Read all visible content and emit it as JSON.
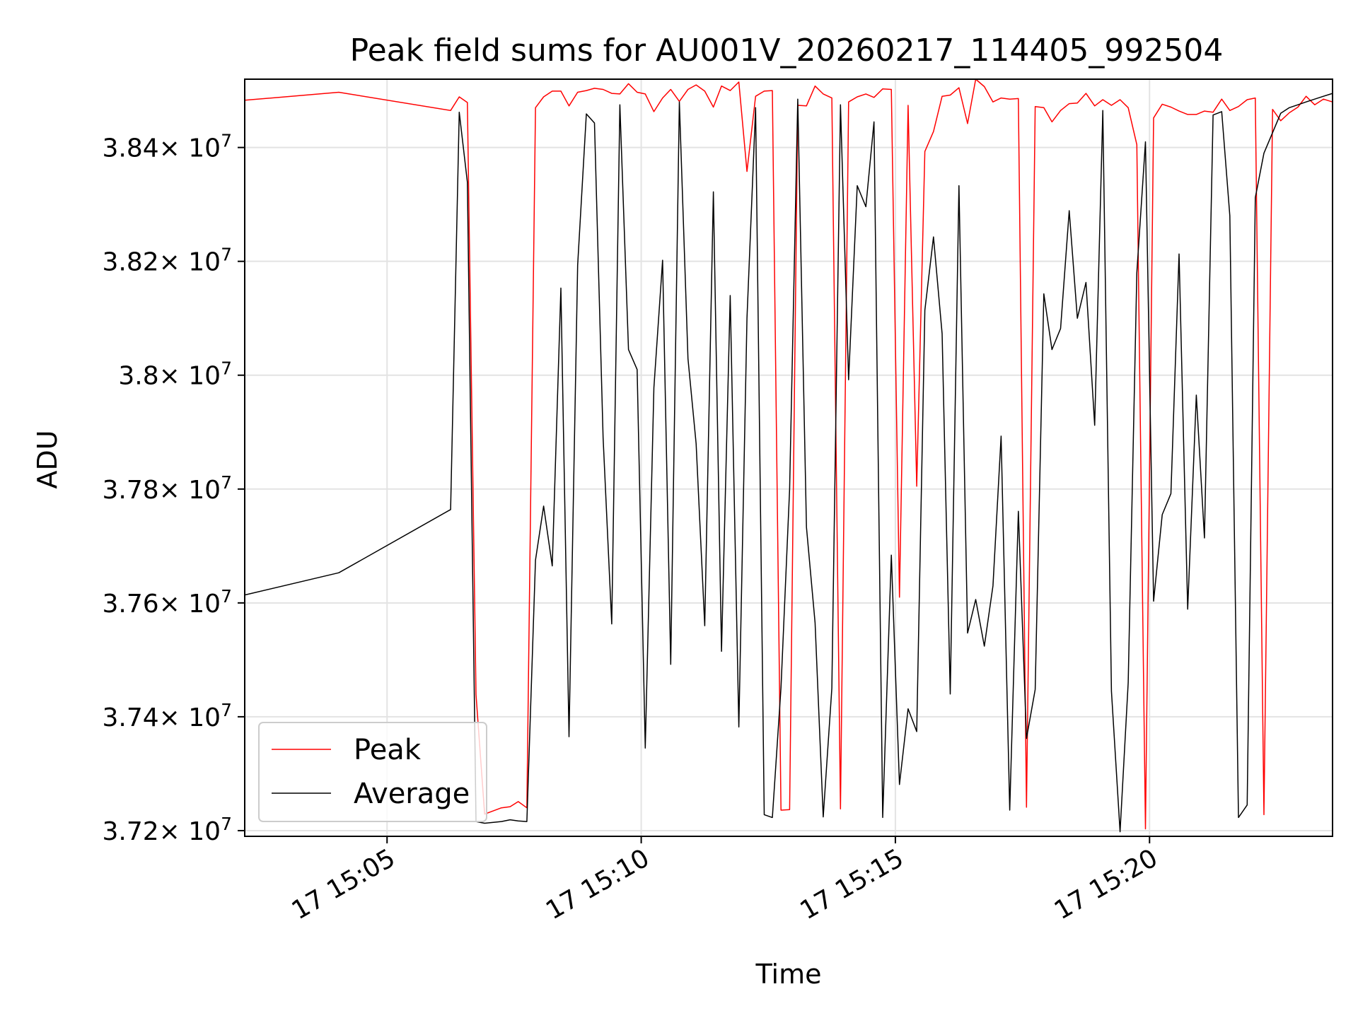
{
  "chart_data": {
    "type": "line",
    "title": "Peak field sums for AU001V_20260217_114405_992504",
    "xlabel": "Time",
    "ylabel": "ADU",
    "x_unit": "minutes after 15:00 on day 17",
    "xlim": [
      2.2,
      23.6
    ],
    "ylim": [
      37190000,
      38520000
    ],
    "grid": true,
    "legend_position": "lower-left",
    "x_ticks": [
      {
        "value": 5,
        "label": "17 15:05"
      },
      {
        "value": 10,
        "label": "17 15:10"
      },
      {
        "value": 15,
        "label": "17 15:15"
      },
      {
        "value": 20,
        "label": "17 15:20"
      }
    ],
    "y_ticks": [
      {
        "value": 37200000,
        "mantissa": "3.72",
        "exponent": "7"
      },
      {
        "value": 37400000,
        "mantissa": "3.74",
        "exponent": "7"
      },
      {
        "value": 37600000,
        "mantissa": "3.76",
        "exponent": "7"
      },
      {
        "value": 37800000,
        "mantissa": "3.78",
        "exponent": "7"
      },
      {
        "value": 38000000,
        "mantissa": "3.8",
        "exponent": "7"
      },
      {
        "value": 38200000,
        "mantissa": "3.82",
        "exponent": "7"
      },
      {
        "value": 38400000,
        "mantissa": "3.84",
        "exponent": "7"
      }
    ],
    "y_tick_multiplier": "× 10",
    "x": [
      2.2,
      4.05,
      6.25,
      6.42,
      6.58,
      6.75,
      6.92,
      7.25,
      7.42,
      7.58,
      7.75,
      7.92,
      8.08,
      8.25,
      8.42,
      8.58,
      8.75,
      8.92,
      9.08,
      9.25,
      9.42,
      9.58,
      9.75,
      9.92,
      10.08,
      10.25,
      10.42,
      10.58,
      10.75,
      10.92,
      11.08,
      11.25,
      11.42,
      11.58,
      11.75,
      11.92,
      12.08,
      12.25,
      12.42,
      12.58,
      12.75,
      12.92,
      13.08,
      13.25,
      13.42,
      13.58,
      13.75,
      13.92,
      14.08,
      14.25,
      14.42,
      14.58,
      14.75,
      14.92,
      15.08,
      15.25,
      15.42,
      15.58,
      15.75,
      15.92,
      16.08,
      16.25,
      16.42,
      16.58,
      16.75,
      16.92,
      17.08,
      17.25,
      17.42,
      17.58,
      17.75,
      17.92,
      18.08,
      18.25,
      18.42,
      18.58,
      18.75,
      18.92,
      19.08,
      19.25,
      19.42,
      19.58,
      19.75,
      19.92,
      20.08,
      20.25,
      20.42,
      20.58,
      20.75,
      20.92,
      21.08,
      21.25,
      21.42,
      21.58,
      21.75,
      21.92,
      22.08,
      22.25,
      22.42,
      22.58,
      22.75,
      22.92,
      23.08,
      23.25,
      23.42,
      23.6
    ],
    "series": [
      {
        "name": "Peak",
        "color": "#ff0000",
        "values": [
          38483000,
          38497000,
          38465000,
          38489000,
          38479000,
          37439000,
          37229000,
          37240000,
          37242000,
          37251000,
          37240000,
          38470000,
          38489000,
          38499000,
          38499000,
          38473000,
          38497000,
          38500000,
          38504000,
          38502000,
          38495000,
          38494000,
          38512000,
          38497000,
          38494000,
          38463000,
          38487000,
          38502000,
          38481000,
          38502000,
          38510000,
          38499000,
          38471000,
          38508000,
          38500000,
          38515000,
          38358000,
          38490000,
          38499000,
          38500000,
          37236000,
          37237000,
          38474000,
          38473000,
          38508000,
          38494000,
          38487000,
          37238000,
          38480000,
          38489000,
          38494000,
          38488000,
          38503000,
          38502000,
          37610000,
          38474000,
          37805000,
          38393000,
          38428000,
          38490000,
          38492000,
          38505000,
          38442000,
          38520000,
          38507000,
          38480000,
          38487000,
          38485000,
          38486000,
          37241000,
          38472000,
          38470000,
          38445000,
          38465000,
          38477000,
          38478000,
          38495000,
          38473000,
          38484000,
          38474000,
          38484000,
          38470000,
          38405000,
          37203000,
          38452000,
          38476000,
          38471000,
          38464000,
          38458000,
          38458000,
          38464000,
          38462000,
          38485000,
          38465000,
          38472000,
          38484000,
          38487000,
          37228000,
          38467000,
          38447000,
          38461000,
          38471000,
          38490000,
          38475000,
          38485000,
          38480000
        ]
      },
      {
        "name": "Average",
        "color": "#000000",
        "values": [
          37614000,
          37653000,
          37764000,
          38462000,
          38339000,
          37216000,
          37213000,
          37216000,
          37219000,
          37217000,
          37216000,
          37675000,
          37770000,
          37665000,
          38153000,
          37365000,
          38193000,
          38459000,
          38443000,
          37890000,
          37563000,
          38475000,
          38045000,
          38010000,
          37345000,
          37978000,
          38202000,
          37492000,
          38480000,
          38029000,
          37880000,
          37560000,
          38322000,
          37515000,
          38140000,
          37382000,
          38100000,
          38470000,
          37228000,
          37223000,
          37451000,
          37800000,
          38485000,
          37733000,
          37565000,
          37224000,
          37450000,
          38475000,
          37992000,
          38333000,
          38296000,
          38445000,
          37223000,
          37684000,
          37281000,
          37414000,
          37374000,
          38114000,
          38243000,
          38073000,
          37440000,
          38333000,
          37547000,
          37606000,
          37524000,
          37630000,
          37893000,
          37236000,
          37761000,
          37362000,
          37448000,
          38143000,
          38045000,
          38082000,
          38289000,
          38100000,
          38163000,
          37912000,
          38465000,
          37445000,
          37198000,
          37460000,
          38180000,
          38410000,
          37603000,
          37755000,
          37792000,
          38213000,
          37589000,
          37965000,
          37714000,
          38457000,
          38463000,
          38280000,
          37223000,
          37245000,
          38312000,
          38390000,
          38426000,
          38460000,
          38470000,
          38475000,
          38480000,
          38485000,
          38490000,
          38495000
        ]
      }
    ]
  }
}
